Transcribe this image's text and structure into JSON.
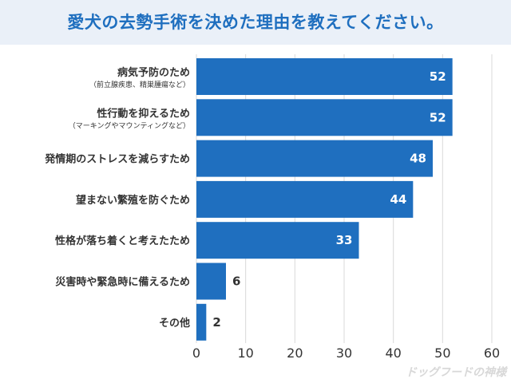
{
  "title": "愛犬の去勢手術を決めた理由を教えてください。",
  "watermark": "ドッグフードの神様",
  "chart_data": {
    "type": "bar",
    "orientation": "horizontal",
    "categories": [
      {
        "label": "病気予防のため",
        "sub": "（前立腺疾患、精巣腫瘍など）"
      },
      {
        "label": "性行動を抑えるため",
        "sub": "（マーキングやマウンティングなど）"
      },
      {
        "label": "発情期のストレスを減らすため",
        "sub": ""
      },
      {
        "label": "望まない繁殖を防ぐため",
        "sub": ""
      },
      {
        "label": "性格が落ち着くと考えたため",
        "sub": ""
      },
      {
        "label": "災害時や緊急時に備えるため",
        "sub": ""
      },
      {
        "label": "その他",
        "sub": ""
      }
    ],
    "values": [
      52,
      52,
      48,
      44,
      33,
      6,
      2
    ],
    "xlim": [
      0,
      60
    ],
    "xticks": [
      0,
      10,
      20,
      30,
      40,
      50,
      60
    ],
    "grid": true,
    "bar_color": "#1f6fbf",
    "label_inside_color": "#ffffff",
    "label_outside_color": "#333333"
  }
}
